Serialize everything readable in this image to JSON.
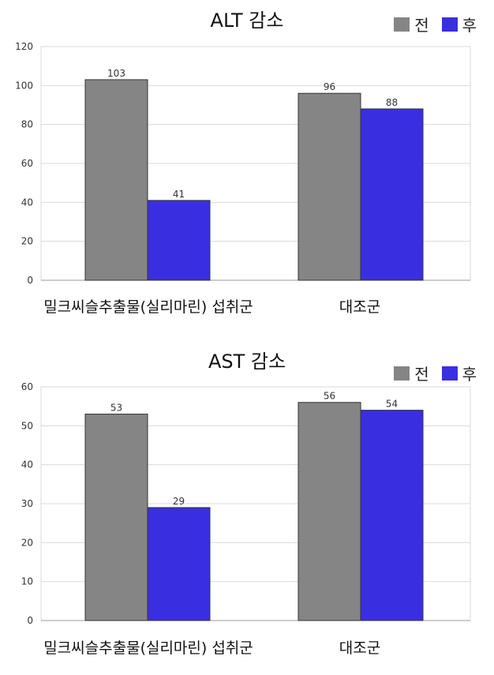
{
  "colors": {
    "before": "#858585",
    "after": "#3a2fe0",
    "grid": "#d9d9d9",
    "axis": "#9a9a9a"
  },
  "legend": {
    "before": "전",
    "after": "후"
  },
  "chart_data": [
    {
      "type": "bar",
      "title": "ALT 감소",
      "categories": [
        "밀크씨슬추출물(실리마린) 섭취군",
        "대조군"
      ],
      "series": [
        {
          "name": "전",
          "values": [
            103,
            96
          ]
        },
        {
          "name": "후",
          "values": [
            41,
            88
          ]
        }
      ],
      "ylim": [
        0,
        120
      ],
      "yticks": [
        0,
        20,
        40,
        60,
        80,
        100,
        120
      ],
      "grid": true,
      "legend_position": "top-right"
    },
    {
      "type": "bar",
      "title": "AST 감소",
      "categories": [
        "밀크씨슬추출물(실리마린) 섭취군",
        "대조군"
      ],
      "series": [
        {
          "name": "전",
          "values": [
            53,
            56
          ]
        },
        {
          "name": "후",
          "values": [
            29,
            54
          ]
        }
      ],
      "ylim": [
        0,
        60
      ],
      "yticks": [
        0,
        10,
        20,
        30,
        40,
        50,
        60
      ],
      "grid": true,
      "legend_position": "top-right"
    }
  ]
}
